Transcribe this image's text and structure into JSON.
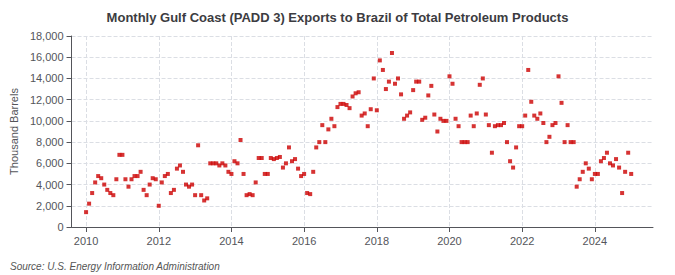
{
  "chart_data": {
    "type": "scatter",
    "title": "Monthly Gulf Coast (PADD 3) Exports to Brazil of Total Petroleum Products",
    "ylabel": "Thousand Barrels",
    "annotations": [
      "Source: U.S. Energy Information Administration"
    ],
    "color": "#cc0000",
    "marker": "square",
    "grid": true,
    "xlim": [
      2009.6,
      2025.6
    ],
    "xticks": [
      2010,
      2012,
      2014,
      2016,
      2018,
      2020,
      2022,
      2024
    ],
    "ylim": [
      0,
      18000
    ],
    "yticks": [
      0,
      {
        "value": 2000,
        "label": "2,000"
      },
      {
        "value": 4000,
        "label": "4,000"
      },
      {
        "value": 6000,
        "label": "6,000"
      },
      {
        "value": 8000,
        "label": "8,000"
      },
      {
        "value": 10000,
        "label": "10,000"
      },
      {
        "value": 12000,
        "label": "12,000"
      },
      {
        "value": 14000,
        "label": "14,000"
      },
      {
        "value": 16000,
        "label": "16,000"
      },
      {
        "value": 18000,
        "label": "18,000"
      }
    ],
    "x": [
      2010.0,
      2010.083,
      2010.167,
      2010.25,
      2010.333,
      2010.417,
      2010.5,
      2010.583,
      2010.667,
      2010.75,
      2010.833,
      2010.917,
      2011.0,
      2011.083,
      2011.167,
      2011.25,
      2011.333,
      2011.417,
      2011.5,
      2011.583,
      2011.667,
      2011.75,
      2011.833,
      2011.917,
      2012.0,
      2012.083,
      2012.167,
      2012.25,
      2012.333,
      2012.417,
      2012.5,
      2012.583,
      2012.667,
      2012.75,
      2012.833,
      2012.917,
      2013.0,
      2013.083,
      2013.167,
      2013.25,
      2013.333,
      2013.417,
      2013.5,
      2013.583,
      2013.667,
      2013.75,
      2013.833,
      2013.917,
      2014.0,
      2014.083,
      2014.167,
      2014.25,
      2014.333,
      2014.417,
      2014.5,
      2014.583,
      2014.667,
      2014.75,
      2014.833,
      2014.917,
      2015.0,
      2015.083,
      2015.167,
      2015.25,
      2015.333,
      2015.417,
      2015.5,
      2015.583,
      2015.667,
      2015.75,
      2015.833,
      2015.917,
      2016.0,
      2016.083,
      2016.167,
      2016.25,
      2016.333,
      2016.417,
      2016.5,
      2016.583,
      2016.667,
      2016.75,
      2016.833,
      2016.917,
      2017.0,
      2017.083,
      2017.167,
      2017.25,
      2017.333,
      2017.417,
      2017.5,
      2017.583,
      2017.667,
      2017.75,
      2017.833,
      2017.917,
      2018.0,
      2018.083,
      2018.167,
      2018.25,
      2018.333,
      2018.417,
      2018.5,
      2018.583,
      2018.667,
      2018.75,
      2018.833,
      2018.917,
      2019.0,
      2019.083,
      2019.167,
      2019.25,
      2019.333,
      2019.417,
      2019.5,
      2019.583,
      2019.667,
      2019.75,
      2019.833,
      2019.917,
      2020.0,
      2020.083,
      2020.167,
      2020.25,
      2020.333,
      2020.417,
      2020.5,
      2020.583,
      2020.667,
      2020.75,
      2020.833,
      2020.917,
      2021.0,
      2021.083,
      2021.167,
      2021.25,
      2021.333,
      2021.417,
      2021.5,
      2021.583,
      2021.667,
      2021.75,
      2021.833,
      2021.917,
      2022.0,
      2022.083,
      2022.167,
      2022.25,
      2022.333,
      2022.417,
      2022.5,
      2022.583,
      2022.667,
      2022.75,
      2022.833,
      2022.917,
      2023.0,
      2023.083,
      2023.167,
      2023.25,
      2023.333,
      2023.417,
      2023.5,
      2023.583,
      2023.667,
      2023.75,
      2023.833,
      2023.917,
      2024.0,
      2024.083,
      2024.167,
      2024.25,
      2024.333,
      2024.417,
      2024.5,
      2024.583,
      2024.667,
      2024.75,
      2024.833,
      2024.917,
      2025.0
    ],
    "values": [
      1400,
      2200,
      3200,
      4200,
      4800,
      4600,
      4000,
      3500,
      3200,
      3000,
      4500,
      6800,
      6800,
      4500,
      3800,
      4500,
      4800,
      4800,
      5200,
      3500,
      3000,
      4000,
      4600,
      4500,
      2000,
      4200,
      4800,
      5000,
      3200,
      3500,
      5500,
      5800,
      5200,
      4000,
      3800,
      4000,
      3000,
      7700,
      3000,
      2500,
      2700,
      6000,
      6000,
      6000,
      5800,
      6000,
      5800,
      5200,
      5000,
      6200,
      6000,
      8200,
      5000,
      3000,
      3100,
      3000,
      4200,
      6500,
      6500,
      5000,
      5000,
      6500,
      6400,
      6500,
      6600,
      5600,
      6000,
      7500,
      6200,
      6400,
      5500,
      4800,
      5000,
      3200,
      3100,
      5200,
      7500,
      8000,
      9600,
      8000,
      9200,
      10200,
      9500,
      11300,
      11600,
      11600,
      11500,
      11200,
      12300,
      12600,
      12700,
      10500,
      10700,
      9500,
      11100,
      14000,
      11000,
      15700,
      14800,
      13000,
      13700,
      16400,
      13500,
      14000,
      12500,
      10200,
      10500,
      10800,
      12900,
      13700,
      13700,
      10100,
      10300,
      12400,
      13300,
      10600,
      9000,
      10200,
      10000,
      10000,
      14200,
      13500,
      10200,
      9500,
      8000,
      8000,
      8000,
      10500,
      9500,
      10700,
      13400,
      14000,
      10600,
      9600,
      7000,
      9500,
      9600,
      9600,
      9800,
      8000,
      6200,
      5600,
      7500,
      9500,
      9500,
      10500,
      14800,
      11800,
      10500,
      10200,
      10700,
      9800,
      8000,
      8500,
      9600,
      9800,
      14200,
      11700,
      8000,
      9600,
      8000,
      8000,
      3800,
      4500,
      5200,
      6000,
      5500,
      4500,
      5000,
      5000,
      6200,
      6500,
      7000,
      6000,
      5800,
      6400,
      5600,
      3200,
      5200,
      7000,
      5000
    ]
  }
}
